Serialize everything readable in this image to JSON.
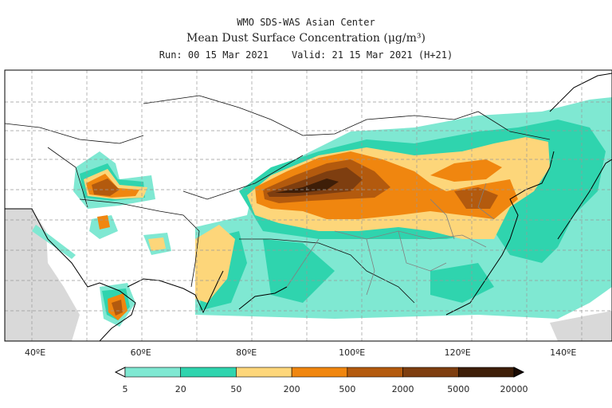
{
  "header": {
    "organization": "WMO SDS-WAS Asian Center",
    "title": "Mean Dust Surface Concentration (μg/m³)",
    "run": "Run: 00 15 Mar 2021",
    "valid": "Valid: 21 15 Mar 2021 (H+21)"
  },
  "map": {
    "region": "Asia",
    "lon_range": [
      35,
      150
    ],
    "lon_labels": [
      {
        "text": "40ºE",
        "lon": 40
      },
      {
        "text": "60ºE",
        "lon": 60
      },
      {
        "text": "80ºE",
        "lon": 80
      },
      {
        "text": "100ºE",
        "lon": 100
      },
      {
        "text": "120ºE",
        "lon": 120
      },
      {
        "text": "140ºE",
        "lon": 140
      }
    ],
    "grid": true,
    "no_data_color": "#d9d9d9"
  },
  "colorbar": {
    "levels": [
      "5",
      "20",
      "50",
      "200",
      "500",
      "2000",
      "5000",
      "20000"
    ],
    "colors": [
      "#7fe8d2",
      "#2fd4ae",
      "#fdd67a",
      "#f0860f",
      "#b35a0e",
      "#7e3e10",
      "#3e1e08"
    ],
    "under_color": "#ffffff",
    "over_color": "#1a0a02"
  },
  "colors": {
    "coast": "#000000",
    "border": "#111111",
    "province": "#808080",
    "gridline": "#999999"
  }
}
